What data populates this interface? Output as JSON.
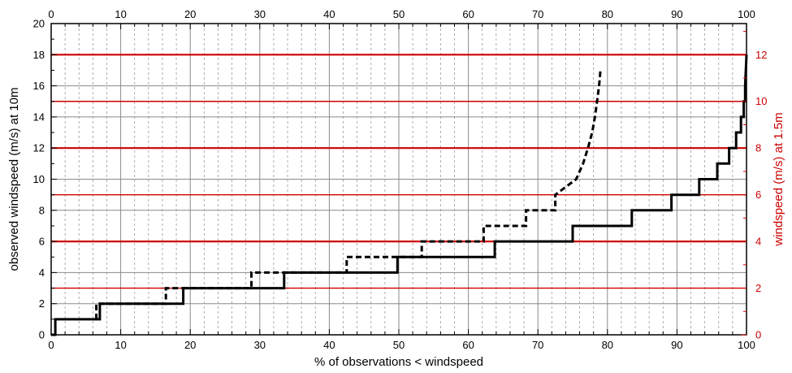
{
  "chart_data": {
    "type": "line",
    "xlabel": "% of observations < windspeed",
    "ylabel": "observed windspeed (m/s) at 10m",
    "y2label": "windspeed (m/s) at 1.5m",
    "xlim": [
      0,
      100
    ],
    "ylim": [
      0,
      20
    ],
    "y2lim": [
      0,
      13.333
    ],
    "x_ticks": [
      "0",
      "10",
      "20",
      "30",
      "40",
      "50",
      "60",
      "70",
      "80",
      "90",
      "100"
    ],
    "y_ticks": [
      "0",
      "2",
      "4",
      "6",
      "8",
      "10",
      "12",
      "14",
      "16",
      "18",
      "20"
    ],
    "y2_ticks": [
      "0",
      "2",
      "4",
      "6",
      "8",
      "10",
      "12"
    ],
    "grid": true,
    "colors": {
      "primary_axis": "#000000",
      "secondary_axis": "#cc0000",
      "grid": "#888888",
      "red_lines": "#cc0000"
    },
    "red_reference_lines_y": [
      3,
      6,
      9,
      12,
      15,
      18
    ],
    "series": [
      {
        "style": "solid",
        "points": [
          [
            0,
            0
          ],
          [
            0.6,
            0
          ],
          [
            0.6,
            1
          ],
          [
            7,
            1
          ],
          [
            7,
            2
          ],
          [
            19,
            2
          ],
          [
            19,
            3
          ],
          [
            33.5,
            3
          ],
          [
            33.5,
            4
          ],
          [
            49.8,
            4
          ],
          [
            49.8,
            5
          ],
          [
            63.8,
            5
          ],
          [
            63.8,
            6
          ],
          [
            75,
            6
          ],
          [
            75,
            7
          ],
          [
            83.5,
            7
          ],
          [
            83.5,
            8
          ],
          [
            89.2,
            8
          ],
          [
            89.2,
            9
          ],
          [
            93.2,
            9
          ],
          [
            93.2,
            10
          ],
          [
            95.8,
            10
          ],
          [
            95.8,
            11
          ],
          [
            97.5,
            11
          ],
          [
            97.5,
            12
          ],
          [
            98.5,
            12
          ],
          [
            98.5,
            13
          ],
          [
            99.2,
            13
          ],
          [
            99.2,
            14
          ],
          [
            99.6,
            14
          ],
          [
            99.6,
            15
          ],
          [
            99.8,
            15
          ],
          [
            99.8,
            16
          ],
          [
            100,
            18
          ]
        ]
      },
      {
        "style": "dashed",
        "points": [
          [
            6.5,
            1
          ],
          [
            6.5,
            2
          ],
          [
            16.5,
            2
          ],
          [
            16.5,
            3
          ],
          [
            28.8,
            3
          ],
          [
            28.8,
            4
          ],
          [
            42.5,
            4
          ],
          [
            42.5,
            5
          ],
          [
            53.3,
            5
          ],
          [
            53.3,
            6
          ],
          [
            62.2,
            6
          ],
          [
            62.2,
            7
          ],
          [
            68.3,
            7
          ],
          [
            68.3,
            8
          ],
          [
            72.5,
            8
          ],
          [
            72.5,
            9
          ],
          [
            75.5,
            10
          ],
          [
            76.5,
            11
          ],
          [
            77.2,
            12
          ],
          [
            77.8,
            13
          ],
          [
            78.2,
            14
          ],
          [
            78.5,
            15
          ],
          [
            78.8,
            16
          ],
          [
            79,
            17
          ]
        ]
      }
    ]
  }
}
